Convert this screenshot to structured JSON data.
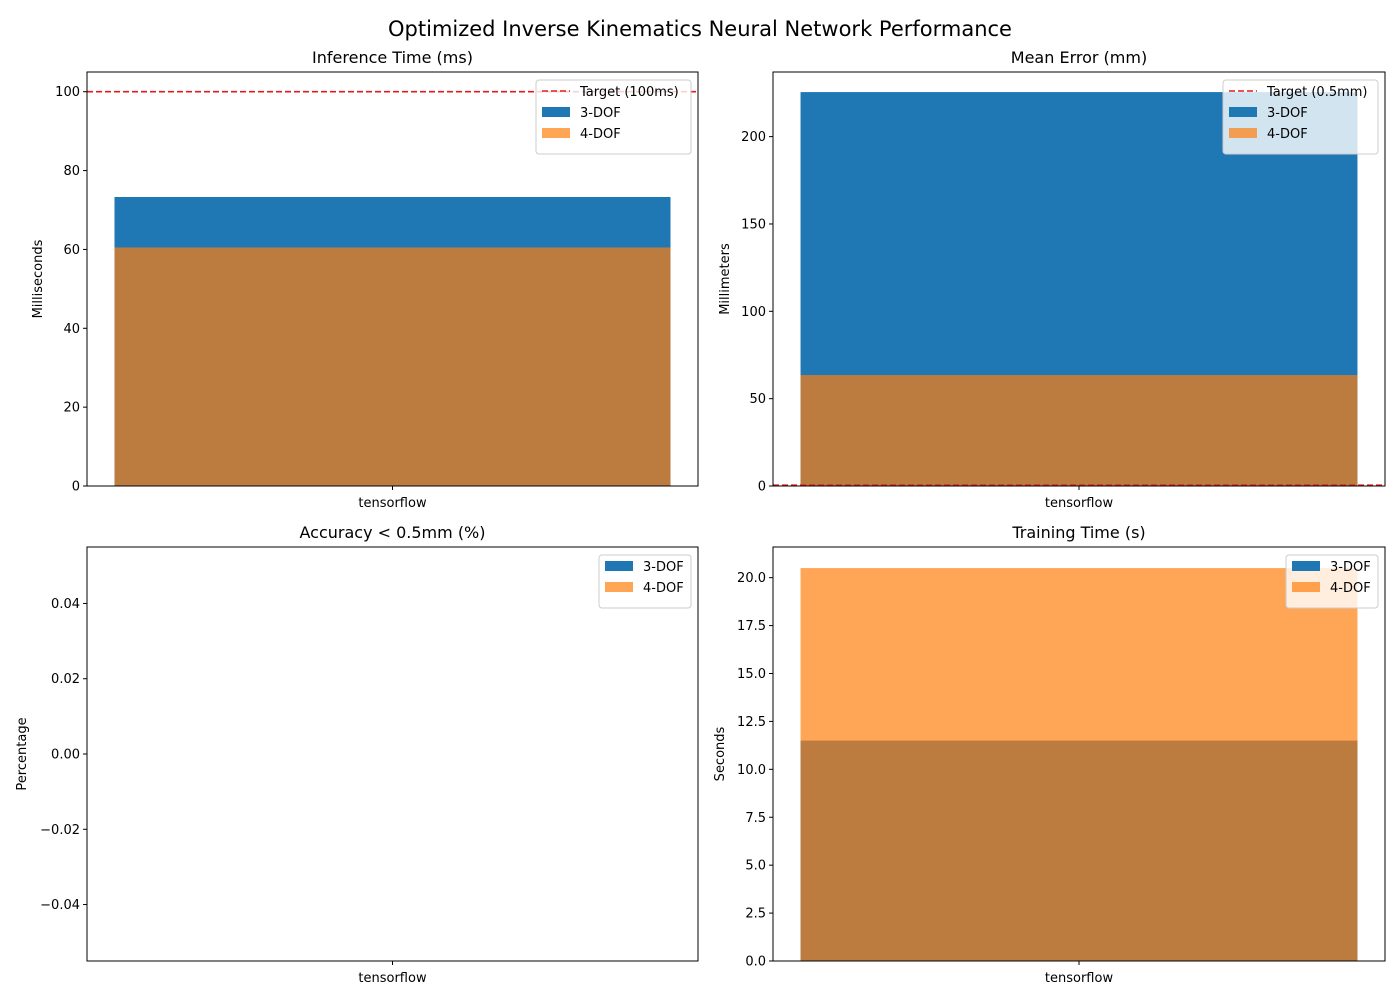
{
  "figure": {
    "title": "Optimized Inverse Kinematics Neural Network Performance"
  },
  "colors": {
    "dof3": "#1f77b4",
    "dof4": "#ff7f0e",
    "overlap": "#b97e41",
    "target": "#e31a1c"
  },
  "chart_data": [
    {
      "type": "bar",
      "title": "Inference Time (ms)",
      "ylabel": "Milliseconds",
      "categories": [
        "tensorflow"
      ],
      "series": [
        {
          "name": "3-DOF",
          "values": [
            73.3
          ]
        },
        {
          "name": "4-DOF",
          "values": [
            60.5
          ]
        }
      ],
      "ylim": [
        0,
        105
      ],
      "yticks": [
        0,
        20,
        40,
        60,
        80,
        100
      ],
      "ytick_labels": [
        "0",
        "20",
        "40",
        "60",
        "80",
        "100"
      ],
      "target": {
        "value": 100,
        "label": "Target (100ms)"
      },
      "legend": "upper right"
    },
    {
      "type": "bar",
      "title": "Mean Error (mm)",
      "ylabel": "Millimeters",
      "categories": [
        "tensorflow"
      ],
      "series": [
        {
          "name": "3-DOF",
          "values": [
            225.5
          ]
        },
        {
          "name": "4-DOF",
          "values": [
            63.5
          ]
        }
      ],
      "ylim": [
        0,
        237
      ],
      "yticks": [
        0,
        50,
        100,
        150,
        200
      ],
      "ytick_labels": [
        "0",
        "50",
        "100",
        "150",
        "200"
      ],
      "target": {
        "value": 0.5,
        "label": "Target (0.5mm)"
      },
      "legend": "upper right"
    },
    {
      "type": "bar",
      "title": "Accuracy < 0.5mm (%)",
      "ylabel": "Percentage",
      "categories": [
        "tensorflow"
      ],
      "series": [
        {
          "name": "3-DOF",
          "values": [
            0
          ]
        },
        {
          "name": "4-DOF",
          "values": [
            0
          ]
        }
      ],
      "ylim": [
        -0.055,
        0.055
      ],
      "yticks": [
        -0.04,
        -0.02,
        0,
        0.02,
        0.04
      ],
      "ytick_labels": [
        "−0.04",
        "−0.02",
        "0.00",
        "0.02",
        "0.04"
      ],
      "legend": "upper right"
    },
    {
      "type": "bar",
      "title": "Training Time (s)",
      "ylabel": "Seconds",
      "categories": [
        "tensorflow"
      ],
      "series": [
        {
          "name": "3-DOF",
          "values": [
            11.5
          ]
        },
        {
          "name": "4-DOF",
          "values": [
            20.5
          ]
        }
      ],
      "ylim": [
        0,
        21.6
      ],
      "yticks": [
        0,
        2.5,
        5,
        7.5,
        10,
        12.5,
        15,
        17.5,
        20
      ],
      "ytick_labels": [
        "0.0",
        "2.5",
        "5.0",
        "7.5",
        "10.0",
        "12.5",
        "15.0",
        "17.5",
        "20.0"
      ],
      "legend": "upper right"
    }
  ]
}
